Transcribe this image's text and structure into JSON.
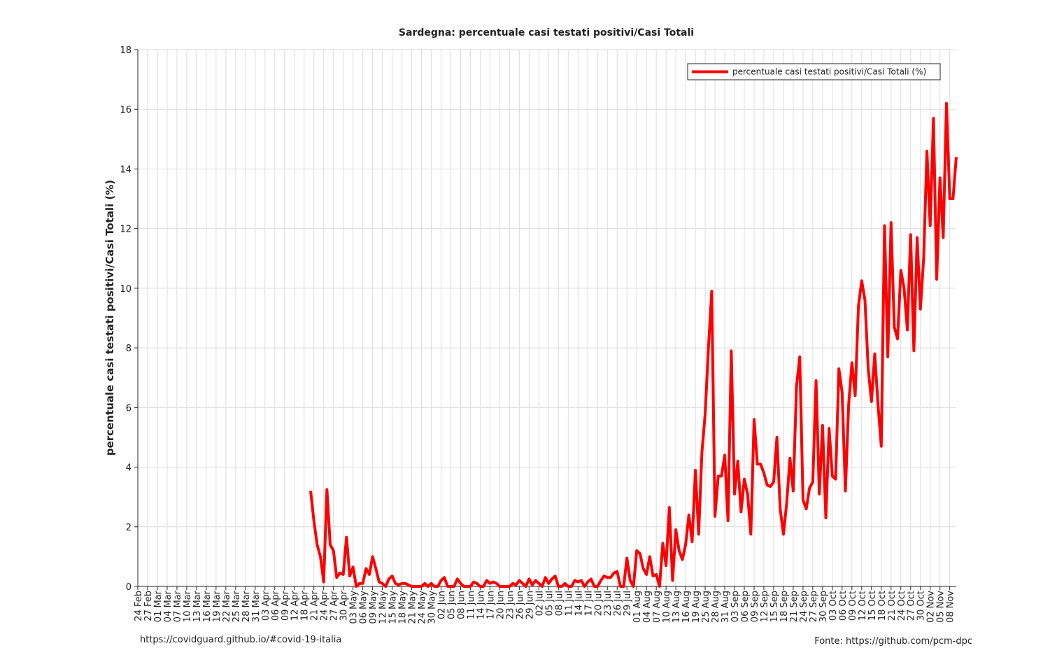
{
  "chart_data": {
    "type": "line",
    "title": "Sardegna: percentuale casi testati positivi/Casi Totali",
    "ylabel": "percentuale casi testati positivi/Casi Totali (%)",
    "annotations": [
      "https://covidguard.github.io/#covid-19-italia",
      "Fonte: https://github.com/pcm-dpc"
    ],
    "categories": [
      "24 Feb",
      null,
      null,
      "27 Feb",
      null,
      null,
      "01 Mar",
      null,
      null,
      "04 Mar",
      null,
      null,
      "07 Mar",
      null,
      null,
      "10 Mar",
      null,
      null,
      "13 Mar",
      null,
      null,
      "16 Mar",
      null,
      null,
      "19 Mar",
      null,
      null,
      "22 Mar",
      null,
      null,
      "25 Mar",
      null,
      null,
      "28 Mar",
      null,
      null,
      "31 Mar",
      null,
      null,
      "03 Apr",
      null,
      null,
      "06 Apr",
      null,
      null,
      "09 Apr",
      null,
      null,
      "12 Apr",
      null,
      null,
      "18 Apr",
      null,
      null,
      "21 Apr",
      null,
      null,
      "24 Apr",
      null,
      null,
      "27 Apr",
      null,
      null,
      "30 Apr",
      null,
      null,
      "03 May",
      null,
      null,
      "06 May",
      null,
      null,
      "09 May",
      null,
      null,
      "12 May",
      null,
      null,
      "15 May",
      null,
      null,
      "18 May",
      null,
      null,
      "21 May",
      null,
      null,
      "24 May",
      null,
      null,
      "30 May",
      null,
      null,
      "02 Jun",
      null,
      null,
      "05 Jun",
      null,
      null,
      "08 Jun",
      null,
      null,
      "11 Jun",
      null,
      null,
      "14 Jun",
      null,
      null,
      "17 Jun",
      null,
      null,
      "20 Jun",
      null,
      null,
      "23 Jun",
      null,
      null,
      "26 Jun",
      null,
      null,
      "29 Jun",
      null,
      null,
      "02 Jul",
      null,
      null,
      "05 Jul",
      null,
      null,
      "08 Jul",
      null,
      null,
      "11 Jul",
      null,
      null,
      "14 Jul",
      null,
      null,
      "17 Jul",
      null,
      null,
      "20 Jul",
      null,
      null,
      "23 Jul",
      null,
      null,
      "26 Jul",
      null,
      null,
      "29 Jul",
      null,
      null,
      "01 Aug",
      null,
      null,
      "04 Aug",
      null,
      null,
      "07 Aug",
      null,
      null,
      "10 Aug",
      null,
      null,
      "13 Aug",
      null,
      null,
      "16 Aug",
      null,
      null,
      "19 Aug",
      null,
      null,
      "25 Aug",
      null,
      null,
      "28 Aug",
      null,
      null,
      "31 Aug",
      null,
      null,
      "03 Sep",
      null,
      null,
      "06 Sep",
      null,
      null,
      "09 Sep",
      null,
      null,
      "12 Sep",
      null,
      null,
      "15 Sep",
      null,
      null,
      "18 Sep",
      null,
      null,
      "21 Sep",
      null,
      null,
      "24 Sep",
      null,
      null,
      "27 Sep",
      null,
      null,
      "30 Sep",
      null,
      null,
      "03 Oct",
      null,
      null,
      "06 Oct",
      null,
      null,
      "09 Oct",
      null,
      null,
      "12 Oct",
      null,
      null,
      "15 Oct",
      null,
      null,
      "18 Oct",
      null,
      null,
      "21 Oct",
      null,
      null,
      "24 Oct",
      null,
      null,
      "27 Oct",
      null,
      null,
      "30 Oct",
      null,
      null,
      "02 Nov",
      null,
      null,
      "05 Nov",
      null,
      null,
      "08 Nov",
      null,
      null
    ],
    "series": [
      {
        "name": "percentuale casi testati positivi/Casi Totali (%)",
        "color": "#ff0000",
        "values": [
          null,
          null,
          null,
          null,
          null,
          null,
          null,
          null,
          null,
          null,
          null,
          null,
          null,
          null,
          null,
          null,
          null,
          null,
          null,
          null,
          null,
          null,
          null,
          null,
          null,
          null,
          null,
          null,
          null,
          null,
          null,
          null,
          null,
          null,
          null,
          null,
          null,
          null,
          null,
          null,
          null,
          null,
          null,
          null,
          null,
          null,
          null,
          null,
          null,
          null,
          null,
          null,
          null,
          3.2,
          2.2,
          1.4,
          1.0,
          0.15,
          3.25,
          1.4,
          1.2,
          0.3,
          0.45,
          0.4,
          1.65,
          0.35,
          0.65,
          0,
          0.1,
          0.1,
          0.6,
          0.4,
          1.0,
          0.6,
          0.15,
          0.1,
          0,
          0.25,
          0.35,
          0.1,
          0.05,
          0.1,
          0.1,
          0.05,
          0,
          0,
          0,
          0,
          0.1,
          0,
          0.1,
          0,
          0,
          0.2,
          0.3,
          0,
          0,
          0,
          0.25,
          0.1,
          0,
          0,
          0,
          0.15,
          0.1,
          0,
          0,
          0.2,
          0.1,
          0.15,
          0.1,
          0,
          0,
          0,
          0,
          0.1,
          0.05,
          0.2,
          0.1,
          0,
          0.25,
          0.05,
          0.2,
          0.1,
          0,
          0.3,
          0.1,
          0.25,
          0.35,
          0,
          0,
          0.1,
          0,
          0,
          0.2,
          0.15,
          0.2,
          0,
          0.15,
          0.25,
          0,
          0,
          0.2,
          0.35,
          0.3,
          0.3,
          0.45,
          0.5,
          0,
          0,
          0.95,
          0.2,
          0,
          1.2,
          1.1,
          0.6,
          0.4,
          1.0,
          0.35,
          0.4,
          0,
          1.45,
          0.7,
          2.65,
          0.2,
          1.9,
          1.2,
          0.9,
          1.4,
          2.4,
          1.5,
          3.9,
          1.75,
          4.5,
          5.8,
          8.0,
          9.9,
          2.35,
          3.7,
          3.7,
          4.4,
          2.2,
          7.9,
          3.1,
          4.2,
          2.5,
          3.6,
          3.1,
          1.75,
          5.6,
          4.1,
          4.1,
          3.8,
          3.4,
          3.35,
          3.5,
          5.0,
          2.6,
          1.75,
          2.8,
          4.3,
          3.2,
          6.7,
          7.7,
          2.9,
          2.6,
          3.3,
          3.5,
          6.9,
          3.1,
          5.4,
          2.3,
          5.3,
          3.7,
          3.6,
          7.3,
          6.5,
          3.2,
          6.1,
          7.5,
          6.4,
          9.4,
          10.25,
          9.6,
          7.3,
          6.2,
          7.8,
          6.1,
          4.7,
          12.1,
          7.7,
          12.2,
          8.7,
          8.3,
          10.6,
          10.0,
          8.6,
          11.8,
          7.9,
          11.7,
          9.3,
          11.0,
          14.6,
          12.1,
          15.7,
          10.3,
          13.7,
          11.7,
          16.2,
          13.0,
          13.0,
          14.4
        ]
      }
    ],
    "ylim": [
      0,
      18
    ],
    "yticks": [
      0,
      2,
      4,
      6,
      8,
      10,
      12,
      14,
      16,
      18
    ],
    "grid": true,
    "legend": "upper right"
  }
}
